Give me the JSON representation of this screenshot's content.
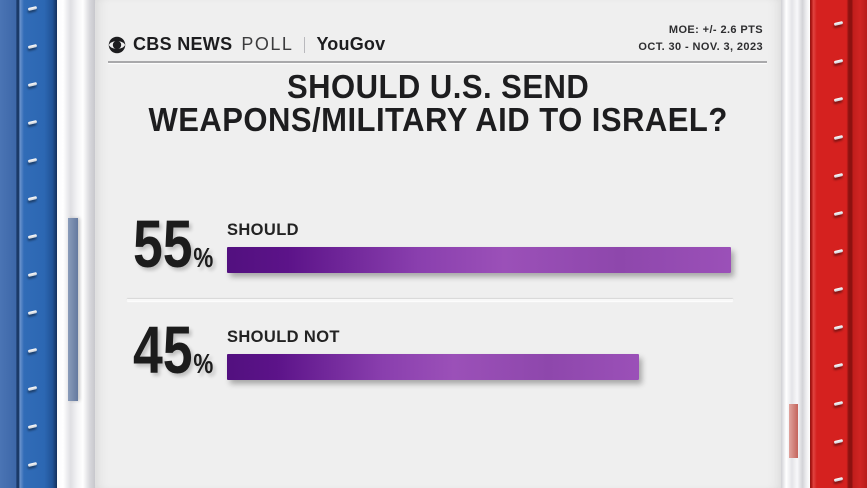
{
  "brand": {
    "cbs_text": "CBS NEWS",
    "poll_text": "POLL",
    "partner": "YouGov"
  },
  "meta": {
    "moe": "MOE: +/- 2.6 PTS",
    "dates": "OCT. 30 - NOV. 3, 2023"
  },
  "title": {
    "line1": "SHOULD U.S. SEND",
    "line2": "WEAPONS/MILITARY AID TO ISRAEL?"
  },
  "chart_data": {
    "type": "bar",
    "orientation": "horizontal",
    "title": "SHOULD U.S. SEND WEAPONS/MILITARY AID TO ISRAEL?",
    "categories": [
      "SHOULD",
      "SHOULD NOT"
    ],
    "values": [
      55,
      45
    ],
    "unit": "%",
    "scale_max": 55,
    "grid": false,
    "legend": "none",
    "bar_gradient_start": "#52107f",
    "bar_gradient_end": "#9b50b8"
  },
  "colors": {
    "card_bg": "#efefef",
    "blue_edge": "#2c67b3",
    "red_edge": "#d5211f",
    "text": "#1c1c1c"
  }
}
